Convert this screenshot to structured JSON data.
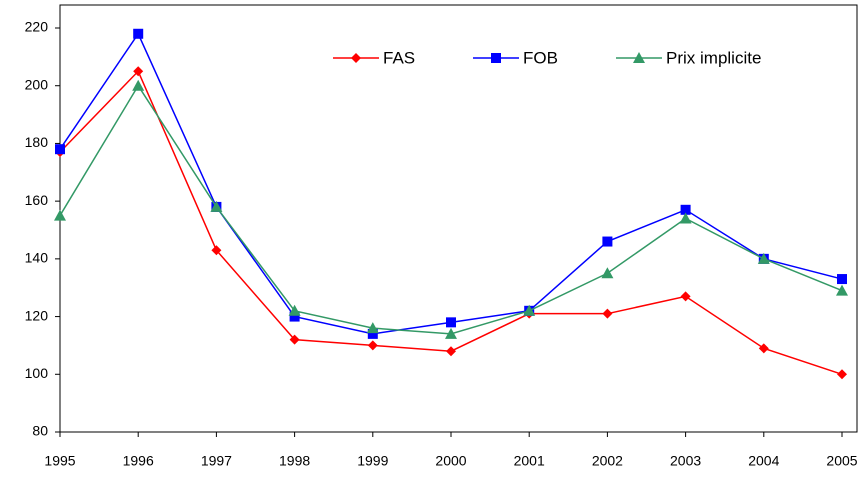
{
  "chart_data": {
    "type": "line",
    "categories": [
      "1995",
      "1996",
      "1997",
      "1998",
      "1999",
      "2000",
      "2001",
      "2002",
      "2003",
      "2004",
      "2005"
    ],
    "series": [
      {
        "name": "FAS",
        "color": "#ff0000",
        "marker": "diamond",
        "values": [
          177,
          205,
          143,
          112,
          110,
          108,
          121,
          121,
          127,
          109,
          100
        ]
      },
      {
        "name": "FOB",
        "color": "#0000ff",
        "marker": "square",
        "values": [
          178,
          218,
          158,
          120,
          114,
          118,
          122,
          146,
          157,
          140,
          133
        ]
      },
      {
        "name": "Prix implicite",
        "color": "#339966",
        "marker": "triangle",
        "values": [
          155,
          200,
          158,
          122,
          116,
          114,
          122,
          135,
          154,
          140,
          129
        ]
      }
    ],
    "ylim": [
      80,
      220
    ],
    "yticks": [
      80,
      100,
      120,
      140,
      160,
      180,
      200,
      220
    ],
    "grid": false,
    "legend": "top"
  }
}
